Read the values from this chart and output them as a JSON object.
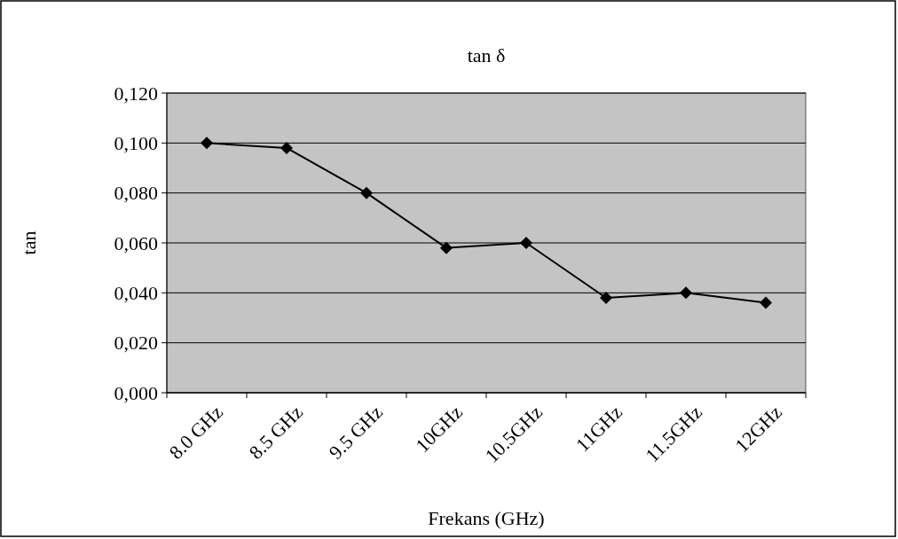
{
  "chart_data": {
    "type": "line",
    "title": "tan δ",
    "xlabel": "Frekans (GHz)",
    "ylabel": "tan",
    "categories": [
      "8.0 GHz",
      "8.5 GHz",
      "9.5 GHz",
      "10GHz",
      "10.5GHz",
      "11GHz",
      "11.5GHz",
      "12GHz"
    ],
    "series": [
      {
        "color": "#000000",
        "values": [
          0.1,
          0.098,
          0.08,
          0.058,
          0.06,
          0.038,
          0.04,
          0.036
        ]
      }
    ],
    "ylim": [
      0,
      0.12
    ],
    "yticks": [
      {
        "value": 0,
        "label": "0,000"
      },
      {
        "value": 0.02,
        "label": "0,020"
      },
      {
        "value": 0.04,
        "label": "0,040"
      },
      {
        "value": 0.06,
        "label": "0,060"
      },
      {
        "value": 0.08,
        "label": "0,080"
      },
      {
        "value": 0.1,
        "label": "0,100"
      },
      {
        "value": 0.12,
        "label": "0,120"
      }
    ],
    "grid": "y",
    "marker": "diamond",
    "line_style": "solid"
  }
}
